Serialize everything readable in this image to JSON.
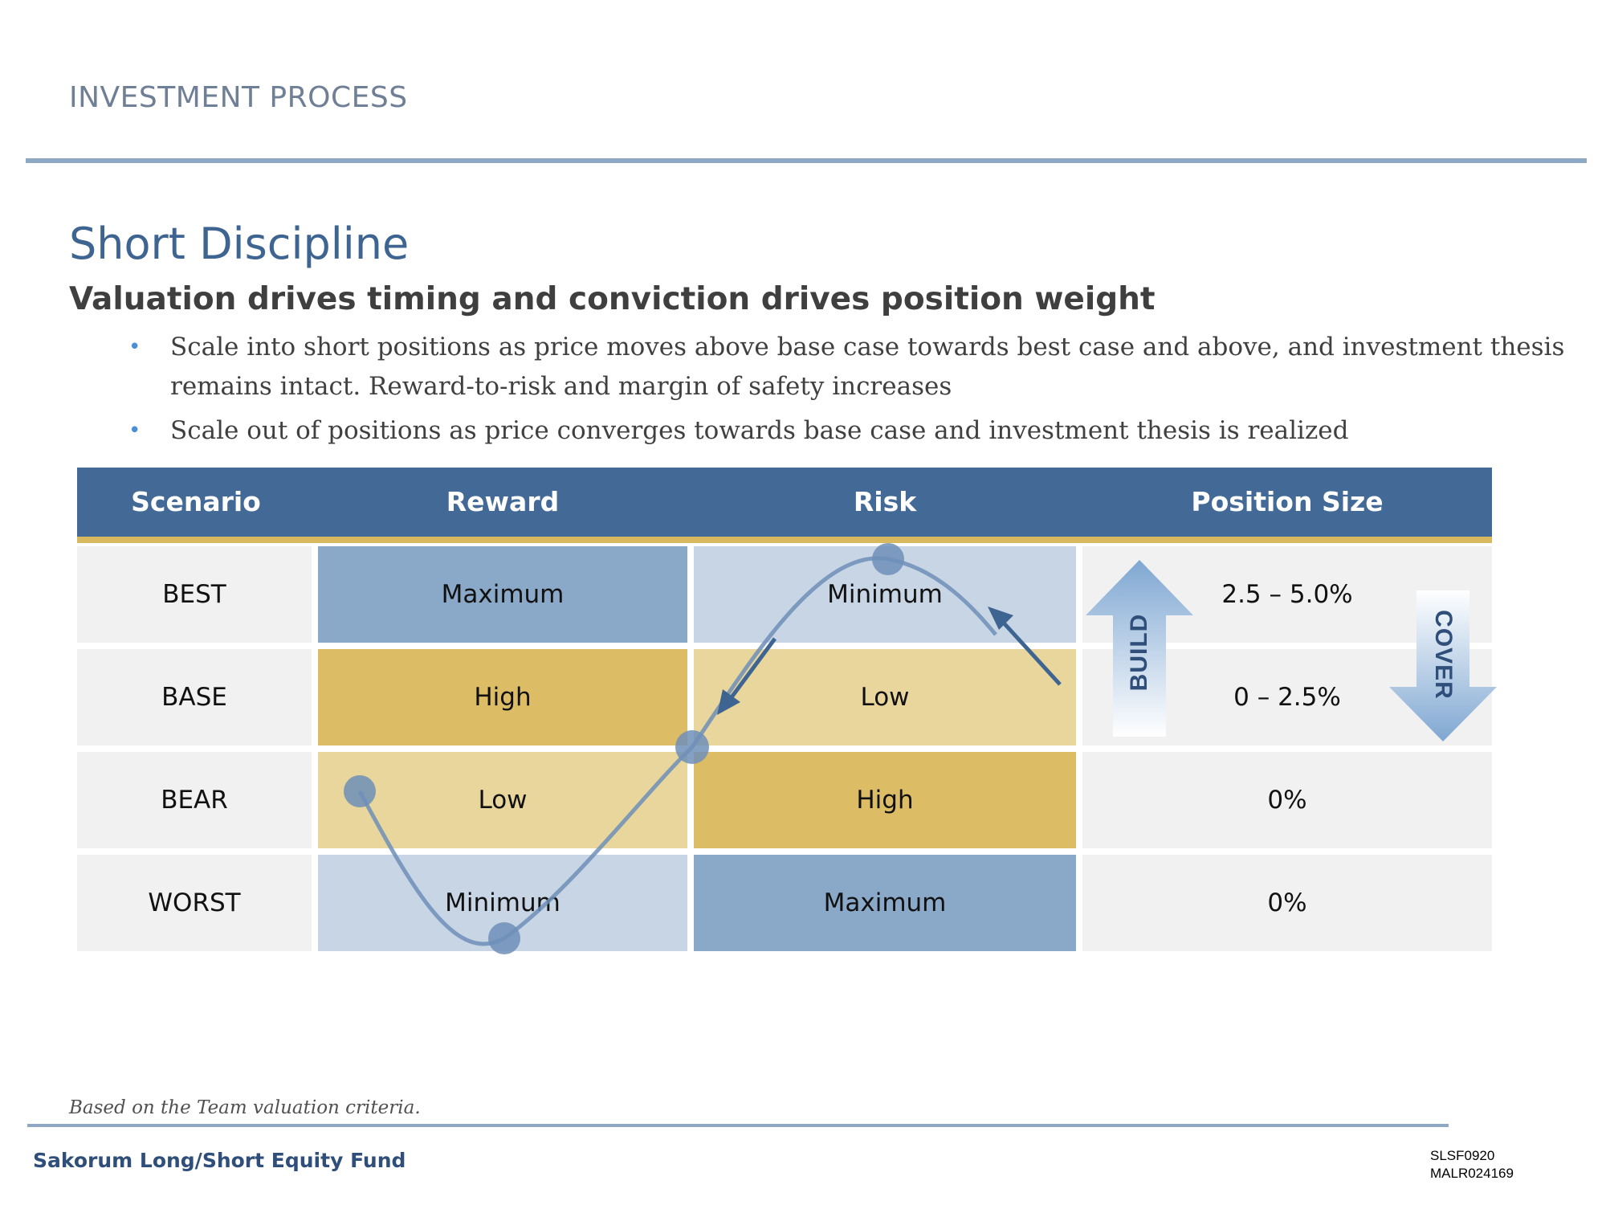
{
  "header": {
    "section_label": "INVESTMENT PROCESS",
    "title": "Short Discipline",
    "subtitle": "Valuation drives timing and conviction drives position weight"
  },
  "bullets": [
    "Scale into short positions as price moves above base case towards best case and above, and investment thesis remains intact. Reward-to-risk and margin of safety increases",
    "Scale out of positions as price converges towards base case and investment thesis is realized"
  ],
  "table": {
    "headers": [
      "Scenario",
      "Reward",
      "Risk",
      "Position Size"
    ],
    "rows": [
      {
        "scenario": "BEST",
        "reward": "Maximum",
        "risk": "Minimum",
        "position": "2.5 – 5.0%"
      },
      {
        "scenario": "BASE",
        "reward": "High",
        "risk": "Low",
        "position": "0 – 2.5%"
      },
      {
        "scenario": "BEAR",
        "reward": "Low",
        "risk": "High",
        "position": "0%"
      },
      {
        "scenario": "WORST",
        "reward": "Minimum",
        "risk": "Maximum",
        "position": "0%"
      }
    ]
  },
  "arrows": {
    "build_label": "BUILD",
    "cover_label": "COVER"
  },
  "colors": {
    "header_bg": "#436a96",
    "gold_rule": "#d8b95e",
    "blue_dark": "#8aa8c8",
    "blue_light": "#c7d5e5",
    "gold_dark": "#dcbd66",
    "gold_light": "#e8d69c",
    "title_blue": "#3e6591"
  },
  "footer": {
    "footnote": "Based on the Team valuation criteria.",
    "fund_name": "Sakorum Long/Short Equity Fund",
    "code_1": "SLSF0920",
    "code_2": "MALR024169"
  }
}
